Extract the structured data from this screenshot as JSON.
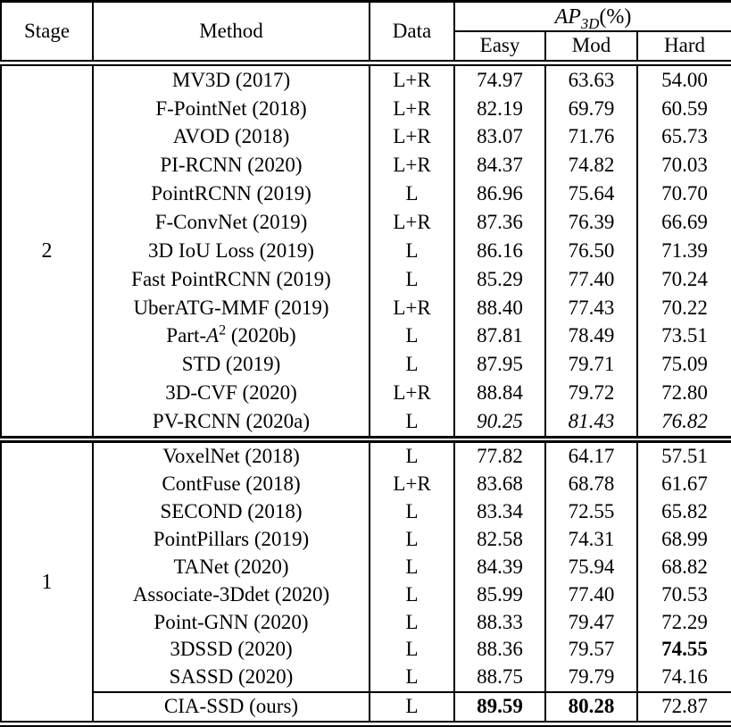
{
  "colors": {
    "border": "#000000",
    "text": "#000000",
    "background": "#ffffff"
  },
  "table": {
    "header": {
      "stage": "Stage",
      "method": "Method",
      "data": "Data",
      "ap_group_parts": [
        {
          "t": "AP",
          "s": "i"
        },
        {
          "t": "3D",
          "s": "subi"
        },
        {
          "t": "(%)",
          "s": "n"
        }
      ],
      "easy": "Easy",
      "mod": "Mod",
      "hard": "Hard"
    },
    "sections": [
      {
        "stage": "2",
        "rows": [
          {
            "method": "MV3D (2017)",
            "data": "L+R",
            "easy": "74.97",
            "mod": "63.63",
            "hard": "54.00"
          },
          {
            "method": "F-PointNet (2018)",
            "data": "L+R",
            "easy": "82.19",
            "mod": "69.79",
            "hard": "60.59"
          },
          {
            "method": "AVOD (2018)",
            "data": "L+R",
            "easy": "83.07",
            "mod": "71.76",
            "hard": "65.73"
          },
          {
            "method": "PI-RCNN (2020)",
            "data": "L+R",
            "easy": "84.37",
            "mod": "74.82",
            "hard": "70.03"
          },
          {
            "method": "PointRCNN (2019)",
            "data": "L",
            "easy": "86.96",
            "mod": "75.64",
            "hard": "70.70"
          },
          {
            "method": "F-ConvNet (2019)",
            "data": "L+R",
            "easy": "87.36",
            "mod": "76.39",
            "hard": "66.69"
          },
          {
            "method": "3D IoU Loss (2019)",
            "data": "L",
            "easy": "86.16",
            "mod": "76.50",
            "hard": "71.39"
          },
          {
            "method": "Fast PointRCNN (2019)",
            "data": "L",
            "easy": "85.29",
            "mod": "77.40",
            "hard": "70.24"
          },
          {
            "method": "UberATG-MMF (2019)",
            "data": "L+R",
            "easy": "88.40",
            "mod": "77.43",
            "hard": "70.22"
          },
          {
            "method": "Part-A2 (2020b)",
            "method_parts": [
              {
                "t": "Part-",
                "s": "n"
              },
              {
                "t": "A",
                "s": "i"
              },
              {
                "t": "2",
                "s": "sup"
              },
              {
                "t": " (2020b)",
                "s": "n"
              }
            ],
            "data": "L",
            "easy": "87.81",
            "mod": "78.49",
            "hard": "73.51"
          },
          {
            "method": "STD (2019)",
            "data": "L",
            "easy": "87.95",
            "mod": "79.71",
            "hard": "75.09"
          },
          {
            "method": "3D-CVF (2020)",
            "data": "L+R",
            "easy": "88.84",
            "mod": "79.72",
            "hard": "72.80"
          },
          {
            "method": "PV-RCNN (2020a)",
            "data": "L",
            "easy": "90.25",
            "mod": "81.43",
            "hard": "76.82",
            "style": {
              "easy": "italic",
              "mod": "italic",
              "hard": "italic"
            }
          }
        ]
      },
      {
        "stage": "1",
        "rows": [
          {
            "method": "VoxelNet (2018)",
            "data": "L",
            "easy": "77.82",
            "mod": "64.17",
            "hard": "57.51"
          },
          {
            "method": "ContFuse (2018)",
            "data": "L+R",
            "easy": "83.68",
            "mod": "68.78",
            "hard": "61.67"
          },
          {
            "method": "SECOND (2018)",
            "data": "L",
            "easy": "83.34",
            "mod": "72.55",
            "hard": "65.82"
          },
          {
            "method": "PointPillars (2019)",
            "data": "L",
            "easy": "82.58",
            "mod": "74.31",
            "hard": "68.99"
          },
          {
            "method": "TANet (2020)",
            "data": "L",
            "easy": "84.39",
            "mod": "75.94",
            "hard": "68.82"
          },
          {
            "method": "Associate-3Ddet (2020)",
            "data": "L",
            "easy": "85.99",
            "mod": "77.40",
            "hard": "70.53"
          },
          {
            "method": "Point-GNN (2020)",
            "data": "L",
            "easy": "88.33",
            "mod": "79.47",
            "hard": "72.29"
          },
          {
            "method": "3DSSD (2020)",
            "data": "L",
            "easy": "88.36",
            "mod": "79.57",
            "hard": "74.55",
            "style": {
              "hard": "bold"
            }
          },
          {
            "method": "SASSD (2020)",
            "data": "L",
            "easy": "88.75",
            "mod": "79.79",
            "hard": "74.16"
          },
          {
            "method": "CIA-SSD (ours)",
            "data": "L",
            "easy": "89.59",
            "mod": "80.28",
            "hard": "72.87",
            "style": {
              "easy": "bold",
              "mod": "bold"
            },
            "topline": true
          }
        ]
      }
    ]
  }
}
